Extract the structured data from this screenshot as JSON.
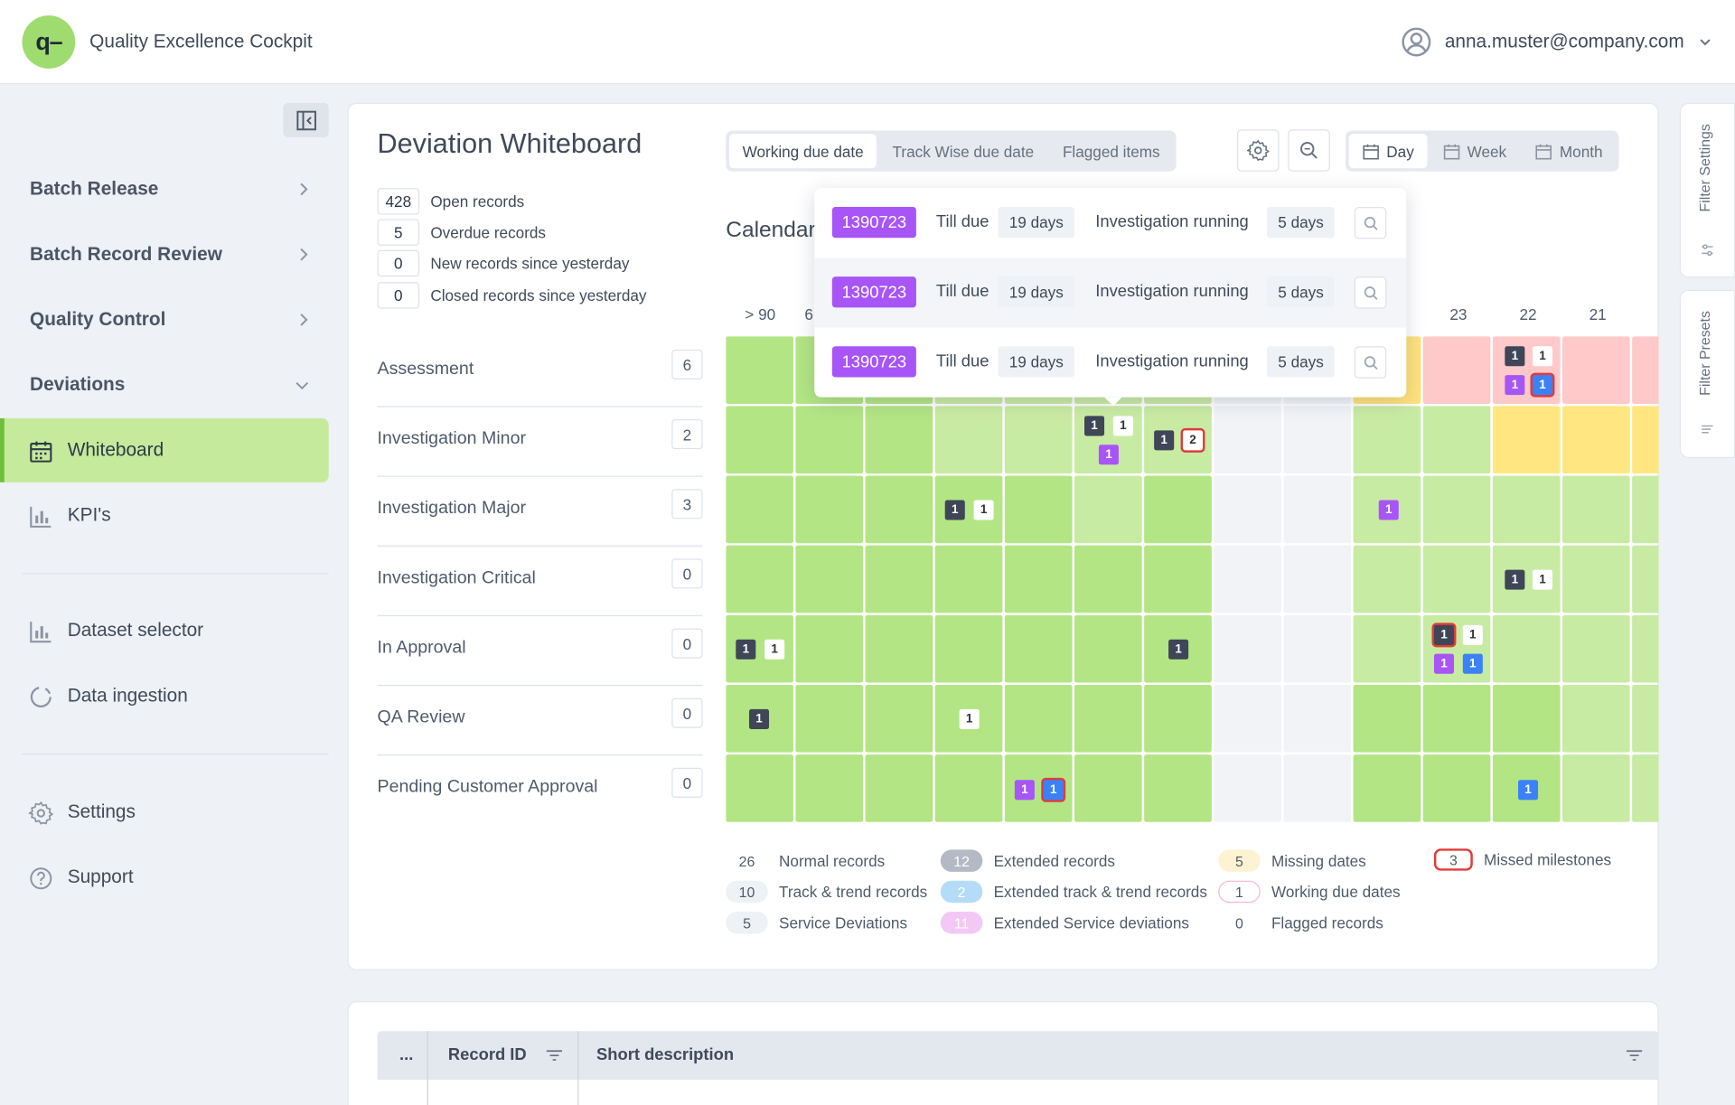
{
  "header": {
    "logo_text": "q–",
    "app_title": "Quality Excellence Cockpit",
    "user_email": "anna.muster@company.com"
  },
  "sidebar": {
    "items": [
      {
        "label": "Batch Release"
      },
      {
        "label": "Batch Record Review"
      },
      {
        "label": "Quality Control"
      },
      {
        "label": "Deviations"
      },
      {
        "label": "Whiteboard"
      },
      {
        "label": "KPI's"
      },
      {
        "label": "Dataset selector"
      },
      {
        "label": "Data ingestion"
      },
      {
        "label": "Settings"
      },
      {
        "label": "Support"
      }
    ]
  },
  "main": {
    "title": "Deviation Whiteboard",
    "stats": [
      {
        "value": "428",
        "label": "Open records"
      },
      {
        "value": "5",
        "label": "Overdue records"
      },
      {
        "value": "0",
        "label": "New records since yesterday"
      },
      {
        "value": "0",
        "label": "Closed records since yesterday"
      }
    ],
    "due_tabs": [
      "Working due date",
      "Track Wise due date",
      "Flagged items"
    ],
    "period_tabs": [
      "Day",
      "Week",
      "Month"
    ],
    "calendar_title": "Calendar",
    "stages": [
      {
        "label": "Assessment",
        "count": "6"
      },
      {
        "label": "Investigation Minor",
        "count": "2"
      },
      {
        "label": "Investigation Major",
        "count": "3"
      },
      {
        "label": "Investigation Critical",
        "count": "0"
      },
      {
        "label": "In Approval",
        "count": "0"
      },
      {
        "label": "QA Review",
        "count": "0"
      },
      {
        "label": "Pending Customer Approval",
        "count": "0"
      }
    ],
    "columns": [
      "> 90",
      "6",
      "23",
      "22",
      "21"
    ],
    "legend": [
      {
        "value": "26",
        "label": "Normal records"
      },
      {
        "value": "10",
        "label": "Track & trend records"
      },
      {
        "value": "5",
        "label": "Service Deviations"
      },
      {
        "value": "12",
        "label": "Extended records"
      },
      {
        "value": "2",
        "label": "Extended track & trend records"
      },
      {
        "value": "11",
        "label": "Extended Service deviations"
      },
      {
        "value": "5",
        "label": "Missing dates"
      },
      {
        "value": "1",
        "label": "Working due dates"
      },
      {
        "value": "0",
        "label": "Flagged records"
      },
      {
        "value": "3",
        "label": "Missed milestones"
      }
    ]
  },
  "popup": {
    "rows": [
      {
        "id": "1390723",
        "till_due": "Till due",
        "due_days": "19 days",
        "status": "Investigation running",
        "status_days": "5 days"
      },
      {
        "id": "1390723",
        "till_due": "Till due",
        "due_days": "19 days",
        "status": "Investigation running",
        "status_days": "5 days"
      },
      {
        "id": "1390723",
        "till_due": "Till due",
        "due_days": "19 days",
        "status": "Investigation running",
        "status_days": "5 days"
      }
    ]
  },
  "right_rail": {
    "filter_settings": "Filter Settings",
    "filter_presets": "Filter Presets"
  },
  "table": {
    "col_more": "...",
    "col_record_id": "Record ID",
    "col_short_desc": "Short description"
  },
  "colors": {
    "accent_green": "#c5ea9c",
    "purple": "#a855f7",
    "blue": "#3b82f6",
    "red": "#e23b3b",
    "dark": "#3e4657"
  }
}
